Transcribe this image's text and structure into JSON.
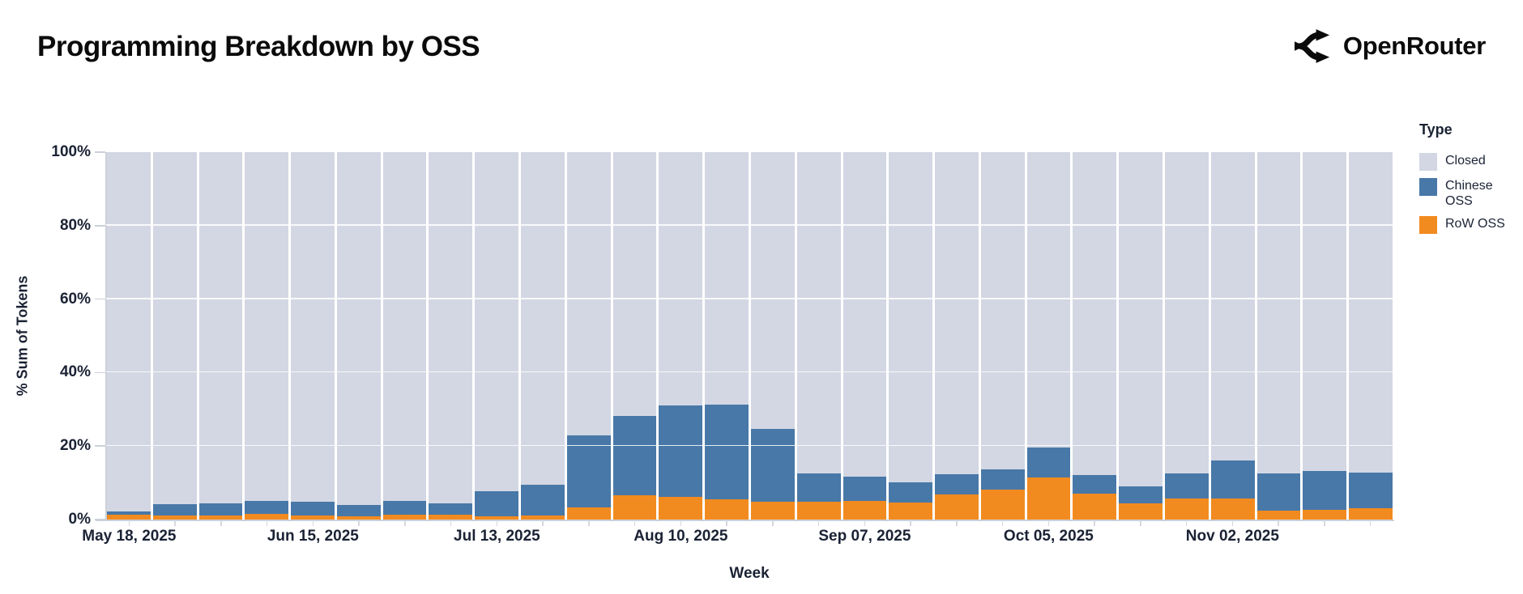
{
  "header": {
    "title": "Programming Breakdown by OSS",
    "brand": "OpenRouter"
  },
  "colors": {
    "closed": "#d3d7e3",
    "chinese_oss": "#4878a8",
    "row_oss": "#f28b1f",
    "axis_text": "#1a2234",
    "axis_line": "#ccd0d9",
    "gridline": "#ffffff",
    "background": "#ffffff"
  },
  "legend": {
    "title": "Type",
    "items": [
      {
        "label": "Closed",
        "color": "#d3d7e3"
      },
      {
        "label": "Chinese OSS",
        "color": "#4878a8"
      },
      {
        "label": "RoW OSS",
        "color": "#f28b1f"
      }
    ]
  },
  "chart_data": {
    "type": "bar",
    "stacked": true,
    "title": "Programming Breakdown by OSS",
    "xlabel": "Week",
    "ylabel": "% Sum of Tokens",
    "ylim": [
      0,
      100
    ],
    "y_ticks": [
      0,
      20,
      40,
      60,
      80,
      100
    ],
    "y_tick_suffix": "%",
    "legend_position": "right",
    "grid": true,
    "x": [
      "May 18, 2025",
      "May 25, 2025",
      "Jun 01, 2025",
      "Jun 08, 2025",
      "Jun 15, 2025",
      "Jun 22, 2025",
      "Jun 29, 2025",
      "Jul 06, 2025",
      "Jul 13, 2025",
      "Jul 20, 2025",
      "Jul 27, 2025",
      "Aug 03, 2025",
      "Aug 10, 2025",
      "Aug 17, 2025",
      "Aug 24, 2025",
      "Aug 31, 2025",
      "Sep 07, 2025",
      "Sep 14, 2025",
      "Sep 21, 2025",
      "Sep 28, 2025",
      "Oct 05, 2025",
      "Oct 12, 2025",
      "Oct 19, 2025",
      "Oct 26, 2025",
      "Nov 02, 2025",
      "Nov 09, 2025",
      "Nov 16, 2025",
      "Nov 23, 2025"
    ],
    "x_tick_indices": [
      0,
      4,
      8,
      12,
      16,
      20,
      24
    ],
    "x_tick_labels": [
      "May 18, 2025",
      "Jun 15, 2025",
      "Jul 13, 2025",
      "Aug 10, 2025",
      "Sep 07, 2025",
      "Oct 05, 2025",
      "Nov 02, 2025"
    ],
    "stack_order_bottom_to_top": [
      "RoW OSS",
      "Chinese OSS",
      "Closed"
    ],
    "series": [
      {
        "name": "RoW OSS",
        "color": "#f28b1f",
        "values": [
          1.3,
          1.1,
          1.0,
          1.5,
          1.1,
          0.9,
          1.3,
          1.3,
          0.9,
          1.1,
          3.3,
          6.6,
          6.2,
          5.5,
          4.9,
          4.9,
          5.1,
          4.6,
          6.8,
          8.2,
          11.5,
          7.1,
          4.4,
          5.7,
          5.7,
          2.4,
          2.6,
          3.1
        ]
      },
      {
        "name": "Chinese OSS",
        "color": "#4878a8",
        "values": [
          1.0,
          3.1,
          3.5,
          3.5,
          3.7,
          3.1,
          3.8,
          3.1,
          6.8,
          8.4,
          19.6,
          21.6,
          24.9,
          25.8,
          19.8,
          7.7,
          6.6,
          5.5,
          5.5,
          5.5,
          8.1,
          5.1,
          4.6,
          6.8,
          10.4,
          10.1,
          10.6,
          9.7
        ]
      },
      {
        "name": "Closed",
        "color": "#d3d7e3",
        "values": [
          97.7,
          95.8,
          95.5,
          95.0,
          95.2,
          96.0,
          94.9,
          95.6,
          92.3,
          90.5,
          77.1,
          71.8,
          68.9,
          68.7,
          75.3,
          87.4,
          88.3,
          89.9,
          87.7,
          86.3,
          80.4,
          87.8,
          91.0,
          87.5,
          83.9,
          87.5,
          86.8,
          87.2
        ]
      }
    ]
  }
}
